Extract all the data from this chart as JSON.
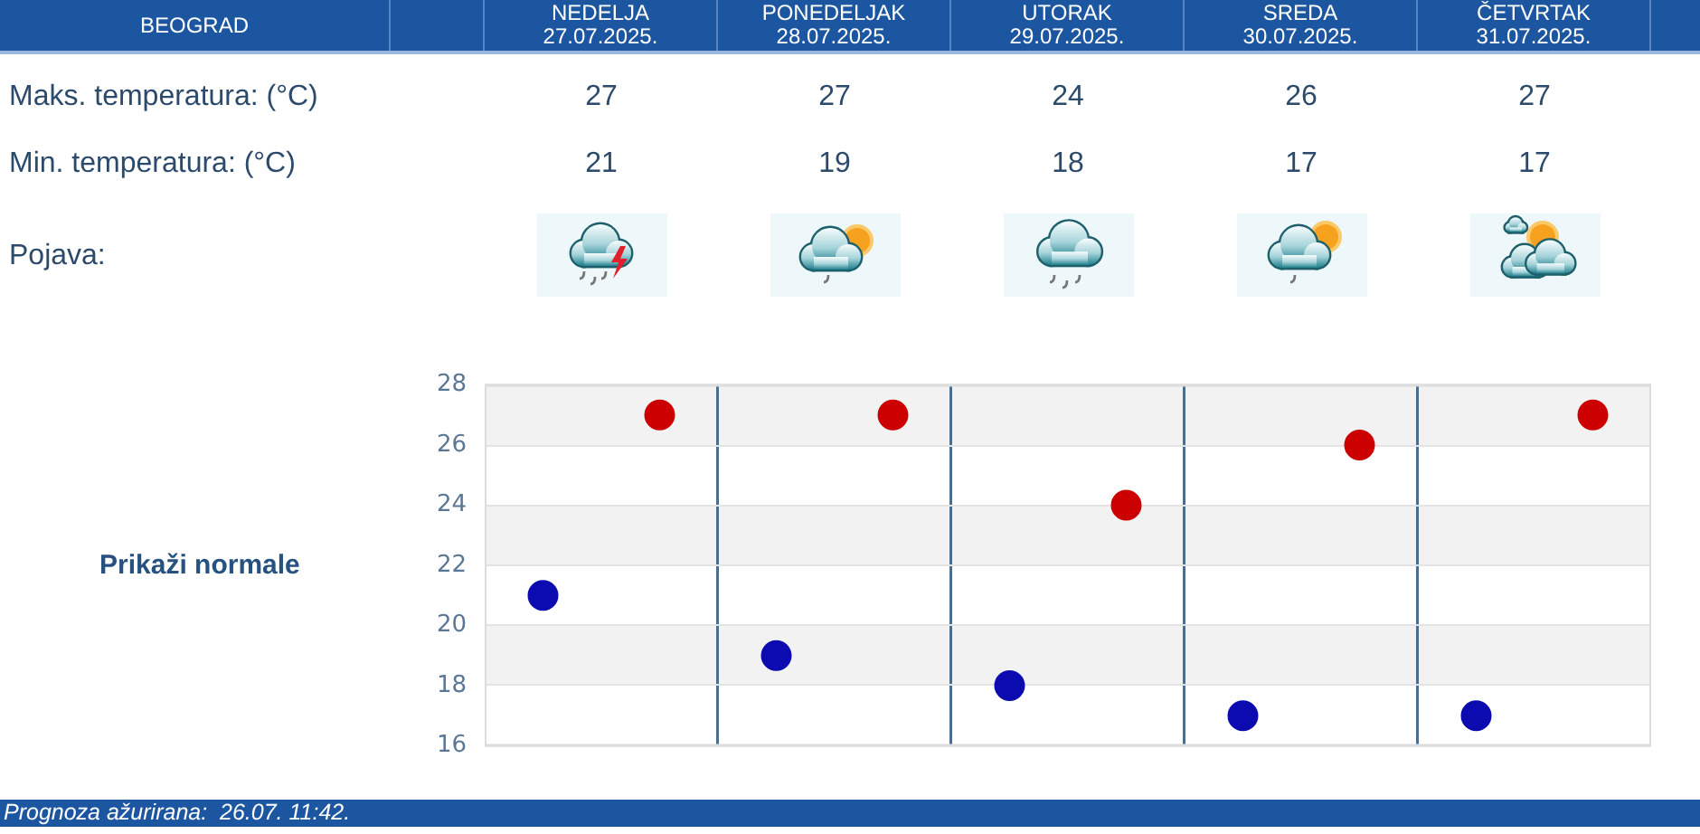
{
  "chart_data": {
    "type": "scatter",
    "title": "BEOGRAD",
    "categories": [
      null,
      null,
      null,
      null,
      null
    ],
    "series": [
      {
        "color": "#cc0000",
        "values": [
          27,
          27,
          24,
          26,
          27
        ]
      },
      {
        "color": "#0b0bb0",
        "values": [
          21,
          19,
          18,
          17,
          17
        ]
      }
    ],
    "ylim": [
      16,
      28
    ],
    "yticks": [
      16,
      18,
      20,
      22,
      24,
      26,
      28
    ],
    "grid": true,
    "bands": [
      {
        "axis": "y",
        "from": 26,
        "to": 28,
        "color": "#f2f2f2"
      },
      {
        "axis": "y",
        "from": 22,
        "to": 24,
        "color": "#f2f2f2"
      },
      {
        "axis": "y",
        "from": 18,
        "to": 20,
        "color": "#f2f2f2"
      }
    ],
    "data_labels": true,
    "marker": "circle",
    "tick_labels": "y",
    "annotations": [
      "NEDELJA\n27.07.2025.",
      "PONEDELJAK\n28.07.2025.",
      "UTORAK\n29.07.2025.",
      "SREDA\n30.07.2025.",
      "ČETVRTAK\n31.07.2025.",
      "Maks. temperatura: (°C)",
      "Min. temperatura: (°C)",
      "Pojava:",
      "Prikaži normale",
      "Prognoza ažurirana:  26.07. 11:42."
    ]
  }
}
